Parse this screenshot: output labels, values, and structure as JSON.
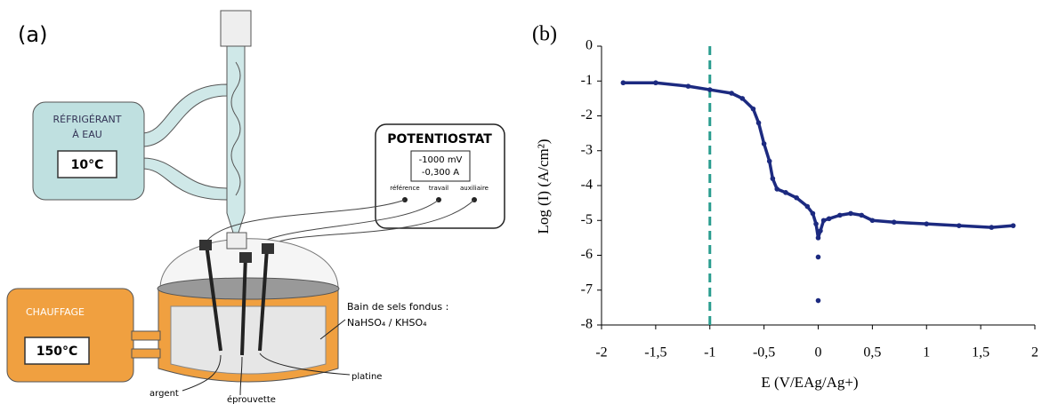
{
  "diagram": {
    "label": "(a)",
    "fridge": {
      "title": "RÉFRIGÉRANT",
      "subtitle": "À EAU",
      "temp": "10°C"
    },
    "potentiostat": {
      "title": "POTENTIOSTAT",
      "line1": "-1000 mV",
      "line2": "-0,300 A",
      "ports": [
        "référence",
        "travail",
        "auxiliaire"
      ]
    },
    "heater": {
      "title": "CHAUFFAGE",
      "temp": "150°C"
    },
    "bath": {
      "line1": "Bain de sels fondus :",
      "line2": "NaHSO₄ / KHSO₄"
    },
    "electrodes": [
      "platine",
      "argent",
      "éprouvette"
    ]
  },
  "chart_data": {
    "type": "scatter",
    "label": "(b)",
    "xlabel": "E (V/EAg/Ag+)",
    "ylabel": "Log (I) (A/cm²)",
    "xlim": [
      -2,
      2
    ],
    "ylim": [
      -8,
      0
    ],
    "xticks": [
      -2,
      {
        "value": -1.5,
        "label": "-1,5"
      },
      -1,
      {
        "value": -0.5,
        "label": "-0,5"
      },
      0,
      {
        "value": 0.5,
        "label": "0,5"
      },
      1,
      {
        "value": 1.5,
        "label": "1,5"
      },
      2
    ],
    "yticks": [
      0,
      -1,
      -2,
      -3,
      -4,
      -5,
      -6,
      -7,
      -8
    ],
    "vline": -1,
    "vline_color": "#2a9d8f",
    "series": [
      {
        "color": "#1c2a80",
        "line": true,
        "x": [
          -1.8,
          -1.5,
          -1.2,
          -1.0,
          -0.8,
          -0.7,
          -0.6,
          -0.55,
          -0.5,
          -0.45,
          -0.42,
          -0.38,
          -0.3,
          -0.2,
          -0.1,
          -0.05,
          -0.02,
          0,
          0.02,
          0.05,
          0.1,
          0.2,
          0.3,
          0.4,
          0.5,
          0.7,
          1.0,
          1.3,
          1.6,
          1.8
        ],
        "values": [
          -1.05,
          -1.05,
          -1.15,
          -1.25,
          -1.35,
          -1.5,
          -1.8,
          -2.2,
          -2.8,
          -3.3,
          -3.8,
          -4.1,
          -4.2,
          -4.35,
          -4.6,
          -4.8,
          -5.1,
          -5.5,
          -5.3,
          -5.0,
          -4.95,
          -4.85,
          -4.8,
          -4.85,
          -5.0,
          -5.05,
          -5.1,
          -5.15,
          -5.2,
          -5.15
        ]
      },
      {
        "color": "#1c2a80",
        "line": false,
        "x": [
          0,
          0
        ],
        "values": [
          -6.05,
          -7.3
        ]
      }
    ]
  }
}
